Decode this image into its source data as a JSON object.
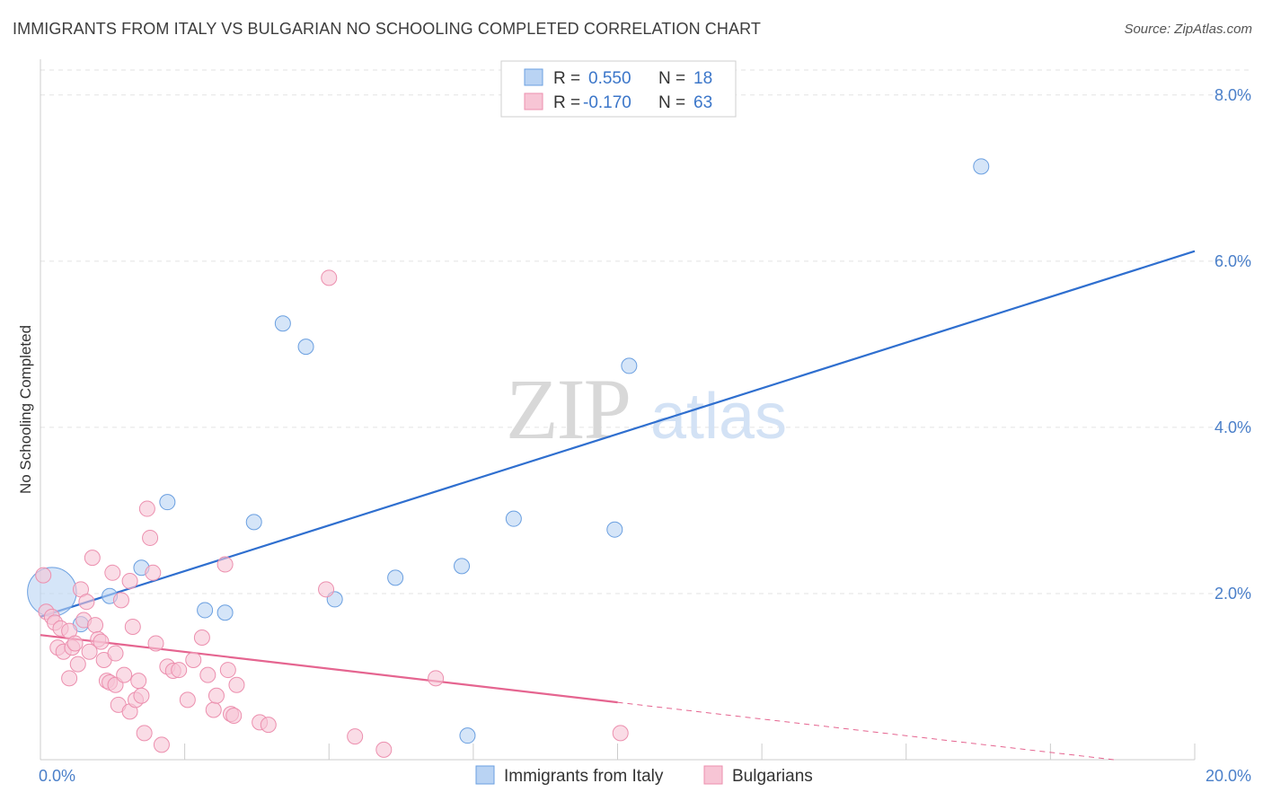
{
  "title": "IMMIGRANTS FROM ITALY VS BULGARIAN NO SCHOOLING COMPLETED CORRELATION CHART",
  "source": "Source: ZipAtlas.com",
  "watermark": {
    "zip": "ZIP",
    "atlas": "atlas"
  },
  "legend": {
    "rows": [
      {
        "r_label": "R =",
        "r_value": "0.550",
        "n_label": "N =",
        "n_value": "18"
      },
      {
        "r_label": "R =",
        "r_value": "-0.170",
        "n_label": "N =",
        "n_value": "63"
      }
    ]
  },
  "chart_data": {
    "type": "scatter",
    "xlabel": "",
    "ylabel": "No Schooling Completed",
    "xlim": [
      0,
      20
    ],
    "ylim": [
      0,
      8.3
    ],
    "x_tick_labels": [
      "0.0%",
      "20.0%"
    ],
    "y_ticks": [
      2,
      4,
      6,
      8
    ],
    "y_tick_labels": [
      "2.0%",
      "4.0%",
      "6.0%",
      "8.0%"
    ],
    "grid": true,
    "legend_position": "bottom",
    "series": [
      {
        "name": "Immigrants from Italy",
        "color": "#6a9fe0",
        "fill": "#b9d3f3",
        "trend": {
          "x0": 0.0,
          "y0": 1.72,
          "x1": 20.0,
          "y1": 6.12
        },
        "points": [
          [
            0.2,
            2.02
          ],
          [
            0.7,
            1.63
          ],
          [
            1.2,
            1.97
          ],
          [
            1.75,
            2.31
          ],
          [
            2.2,
            3.1
          ],
          [
            2.85,
            1.8
          ],
          [
            3.2,
            1.77
          ],
          [
            3.7,
            2.86
          ],
          [
            4.2,
            5.25
          ],
          [
            4.6,
            4.97
          ],
          [
            5.1,
            1.93
          ],
          [
            6.15,
            2.19
          ],
          [
            7.3,
            2.33
          ],
          [
            7.4,
            0.29
          ],
          [
            8.2,
            2.9
          ],
          [
            9.95,
            2.77
          ],
          [
            10.2,
            4.74
          ],
          [
            16.3,
            7.14
          ]
        ],
        "sizes": [
          3.2,
          1,
          1,
          1,
          1,
          1,
          1,
          1,
          1,
          1,
          1,
          1,
          1,
          1,
          1,
          1,
          1,
          1
        ]
      },
      {
        "name": "Bulgarians",
        "color": "#ec8fae",
        "fill": "#f7c5d5",
        "trend": {
          "x0": 0.0,
          "y0": 1.5,
          "x1": 10.0,
          "y1": 0.69
        },
        "trend_ext": {
          "x0": 10.0,
          "y0": 0.69,
          "x1": 18.6,
          "y1": 0.0
        },
        "points": [
          [
            0.05,
            2.22
          ],
          [
            0.1,
            1.78
          ],
          [
            0.2,
            1.72
          ],
          [
            0.25,
            1.65
          ],
          [
            0.3,
            1.35
          ],
          [
            0.35,
            1.58
          ],
          [
            0.4,
            1.3
          ],
          [
            0.5,
            1.55
          ],
          [
            0.55,
            1.35
          ],
          [
            0.5,
            0.98
          ],
          [
            0.6,
            1.4
          ],
          [
            0.65,
            1.15
          ],
          [
            0.7,
            2.05
          ],
          [
            0.75,
            1.68
          ],
          [
            0.8,
            1.9
          ],
          [
            0.85,
            1.3
          ],
          [
            0.9,
            2.43
          ],
          [
            0.95,
            1.62
          ],
          [
            1.0,
            1.45
          ],
          [
            1.05,
            1.42
          ],
          [
            1.1,
            1.2
          ],
          [
            1.15,
            0.95
          ],
          [
            1.2,
            0.93
          ],
          [
            1.25,
            2.25
          ],
          [
            1.3,
            1.28
          ],
          [
            1.3,
            0.9
          ],
          [
            1.35,
            0.66
          ],
          [
            1.4,
            1.92
          ],
          [
            1.45,
            1.02
          ],
          [
            1.55,
            2.15
          ],
          [
            1.55,
            0.58
          ],
          [
            1.6,
            1.6
          ],
          [
            1.65,
            0.72
          ],
          [
            1.7,
            0.95
          ],
          [
            1.75,
            0.77
          ],
          [
            1.8,
            0.32
          ],
          [
            1.85,
            3.02
          ],
          [
            1.9,
            2.67
          ],
          [
            1.95,
            2.25
          ],
          [
            2.0,
            1.4
          ],
          [
            2.1,
            0.18
          ],
          [
            2.2,
            1.12
          ],
          [
            2.3,
            1.07
          ],
          [
            2.4,
            1.08
          ],
          [
            2.55,
            0.72
          ],
          [
            2.65,
            1.2
          ],
          [
            2.8,
            1.47
          ],
          [
            2.9,
            1.02
          ],
          [
            3.0,
            0.6
          ],
          [
            3.05,
            0.77
          ],
          [
            3.2,
            2.35
          ],
          [
            3.25,
            1.08
          ],
          [
            3.3,
            0.55
          ],
          [
            3.4,
            0.9
          ],
          [
            3.35,
            0.53
          ],
          [
            3.8,
            0.45
          ],
          [
            3.95,
            0.42
          ],
          [
            5.0,
            5.8
          ],
          [
            4.95,
            2.05
          ],
          [
            5.45,
            0.28
          ],
          [
            5.95,
            0.12
          ],
          [
            6.85,
            0.98
          ],
          [
            10.05,
            0.32
          ]
        ]
      }
    ]
  }
}
